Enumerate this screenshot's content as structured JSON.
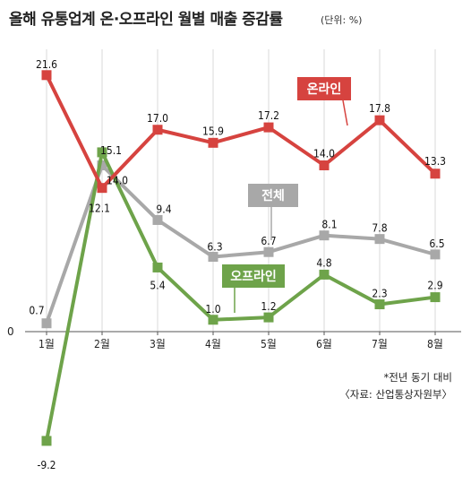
{
  "chart_data": {
    "type": "line",
    "title": "올해 유통업계 온·오프라인 월별 매출 증감률",
    "unit_note": "(단위: %)",
    "categories": [
      "1월",
      "2월",
      "3월",
      "4월",
      "5월",
      "6월",
      "7월",
      "8월"
    ],
    "series": [
      {
        "name": "온라인",
        "color": "#d6433f",
        "values": [
          21.6,
          12.1,
          17.0,
          15.9,
          17.2,
          14.0,
          17.8,
          13.3
        ],
        "labels": [
          "21.6",
          "12.1",
          "17.0",
          "15.9",
          "17.2",
          "14.0",
          "17.8",
          "13.3"
        ]
      },
      {
        "name": "전체",
        "color": "#a8a8a8",
        "values": [
          0.7,
          14.0,
          9.4,
          6.3,
          6.7,
          8.1,
          7.8,
          6.5
        ],
        "labels": [
          "0.7",
          "14.0",
          "9.4",
          "6.3",
          "6.7",
          "8.1",
          "7.8",
          "6.5"
        ]
      },
      {
        "name": "오프라인",
        "color": "#6ea34a",
        "values": [
          -9.2,
          15.1,
          5.4,
          1.0,
          1.2,
          4.8,
          2.3,
          2.9
        ],
        "labels": [
          "-9.2",
          "15.1",
          "5.4",
          "1.0",
          "1.2",
          "4.8",
          "2.3",
          "2.9"
        ]
      }
    ],
    "zero_label": "0",
    "ylim": [
      -10,
      22
    ],
    "grid": "vertical",
    "footnotes": [
      "*전년 동기 대비",
      "〈자료: 산업통상자원부〉"
    ]
  }
}
